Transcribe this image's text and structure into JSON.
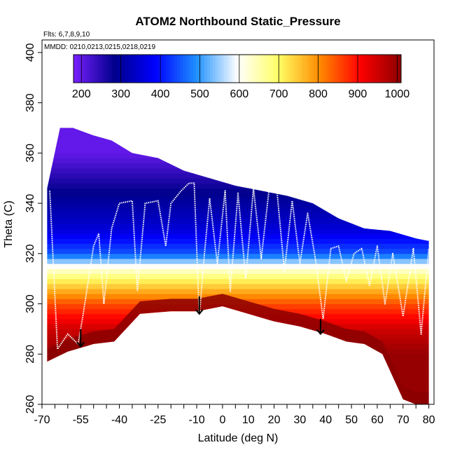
{
  "chart_data": {
    "type": "heatmap",
    "title": "ATOM2 Northbound Static_Pressure",
    "annotations": [
      "Flts: 6,7,8,9,10",
      "MMDD: 0210,0213,0215,0218,0219"
    ],
    "xlabel": "Latitude (deg N)",
    "ylabel": "Theta (C)",
    "xlim": [
      -70,
      82
    ],
    "ylim": [
      260,
      405
    ],
    "x_ticks": [
      -70,
      -55,
      -40,
      -25,
      -10,
      0,
      10,
      20,
      30,
      40,
      50,
      60,
      70,
      80
    ],
    "y_ticks": [
      260,
      280,
      300,
      320,
      340,
      360,
      380,
      400
    ],
    "colorbar": {
      "label": "",
      "range": [
        180,
        1010
      ],
      "ticks": [
        200,
        300,
        400,
        500,
        600,
        700,
        800,
        900,
        1000
      ],
      "placement": "top",
      "colors": [
        "#7a1fff",
        "#00008b",
        "#0000ff",
        "#1e90ff",
        "#ffffff",
        "#ffff66",
        "#ff8c00",
        "#ff0000",
        "#8b0000"
      ]
    },
    "colorscale_breaks": [
      {
        "theta": 360,
        "pressure": 200
      },
      {
        "theta": 345,
        "pressure": 280
      },
      {
        "theta": 330,
        "pressure": 350
      },
      {
        "theta": 320,
        "pressure": 450
      },
      {
        "theta": 315,
        "pressure": 600
      },
      {
        "theta": 310,
        "pressure": 700
      },
      {
        "theta": 300,
        "pressure": 850
      },
      {
        "theta": 290,
        "pressure": 950
      },
      {
        "theta": 280,
        "pressure": 1000
      }
    ],
    "upper_boundary": [
      {
        "x": -68,
        "y": 346
      },
      {
        "x": -63,
        "y": 370
      },
      {
        "x": -58,
        "y": 370
      },
      {
        "x": -50,
        "y": 367
      },
      {
        "x": -43,
        "y": 365
      },
      {
        "x": -35,
        "y": 360
      },
      {
        "x": -25,
        "y": 358
      },
      {
        "x": -15,
        "y": 353
      },
      {
        "x": -5,
        "y": 350
      },
      {
        "x": 5,
        "y": 347
      },
      {
        "x": 15,
        "y": 345
      },
      {
        "x": 25,
        "y": 343
      },
      {
        "x": 35,
        "y": 340
      },
      {
        "x": 45,
        "y": 334
      },
      {
        "x": 55,
        "y": 330
      },
      {
        "x": 65,
        "y": 329
      },
      {
        "x": 75,
        "y": 326
      },
      {
        "x": 80,
        "y": 325
      }
    ],
    "lower_boundary": [
      {
        "x": -68,
        "y": 277
      },
      {
        "x": -60,
        "y": 281
      },
      {
        "x": -50,
        "y": 284
      },
      {
        "x": -42,
        "y": 285
      },
      {
        "x": -32,
        "y": 296
      },
      {
        "x": -20,
        "y": 297
      },
      {
        "x": -10,
        "y": 297
      },
      {
        "x": 0,
        "y": 299
      },
      {
        "x": 10,
        "y": 296
      },
      {
        "x": 20,
        "y": 293
      },
      {
        "x": 30,
        "y": 291
      },
      {
        "x": 40,
        "y": 288
      },
      {
        "x": 48,
        "y": 285
      },
      {
        "x": 55,
        "y": 284
      },
      {
        "x": 62,
        "y": 280
      },
      {
        "x": 70,
        "y": 262
      },
      {
        "x": 75,
        "y": 260
      },
      {
        "x": 80,
        "y": 260
      }
    ],
    "flight_track": [
      {
        "x": -67,
        "y": 345
      },
      {
        "x": -64,
        "y": 282
      },
      {
        "x": -60,
        "y": 288
      },
      {
        "x": -56,
        "y": 284
      },
      {
        "x": -54,
        "y": 296
      },
      {
        "x": -50,
        "y": 323
      },
      {
        "x": -48,
        "y": 328
      },
      {
        "x": -46,
        "y": 300
      },
      {
        "x": -43,
        "y": 330
      },
      {
        "x": -40,
        "y": 340
      },
      {
        "x": -35,
        "y": 341
      },
      {
        "x": -33,
        "y": 305
      },
      {
        "x": -30,
        "y": 340
      },
      {
        "x": -25,
        "y": 341
      },
      {
        "x": -22,
        "y": 323
      },
      {
        "x": -20,
        "y": 340
      },
      {
        "x": -16,
        "y": 345
      },
      {
        "x": -13,
        "y": 348
      },
      {
        "x": -11,
        "y": 348
      },
      {
        "x": -9,
        "y": 295
      },
      {
        "x": -7,
        "y": 320
      },
      {
        "x": -5,
        "y": 342
      },
      {
        "x": -2,
        "y": 316
      },
      {
        "x": 1,
        "y": 345
      },
      {
        "x": 3,
        "y": 305
      },
      {
        "x": 6,
        "y": 344
      },
      {
        "x": 9,
        "y": 310
      },
      {
        "x": 12,
        "y": 346
      },
      {
        "x": 15,
        "y": 318
      },
      {
        "x": 18,
        "y": 345
      },
      {
        "x": 21,
        "y": 346
      },
      {
        "x": 24,
        "y": 313
      },
      {
        "x": 27,
        "y": 341
      },
      {
        "x": 30,
        "y": 316
      },
      {
        "x": 33,
        "y": 336
      },
      {
        "x": 36,
        "y": 318
      },
      {
        "x": 39,
        "y": 294
      },
      {
        "x": 42,
        "y": 322
      },
      {
        "x": 45,
        "y": 323
      },
      {
        "x": 48,
        "y": 309
      },
      {
        "x": 51,
        "y": 320
      },
      {
        "x": 54,
        "y": 322
      },
      {
        "x": 57,
        "y": 307
      },
      {
        "x": 60,
        "y": 323
      },
      {
        "x": 63,
        "y": 300
      },
      {
        "x": 66,
        "y": 320
      },
      {
        "x": 70,
        "y": 295
      },
      {
        "x": 74,
        "y": 322
      },
      {
        "x": 77,
        "y": 288
      },
      {
        "x": 80,
        "y": 322
      }
    ],
    "arrows": [
      {
        "x": -55,
        "y_from": 290,
        "y_to": 283
      },
      {
        "x": -9,
        "y_from": 303,
        "y_to": 296
      },
      {
        "x": 38,
        "y_from": 294,
        "y_to": 288
      }
    ]
  }
}
